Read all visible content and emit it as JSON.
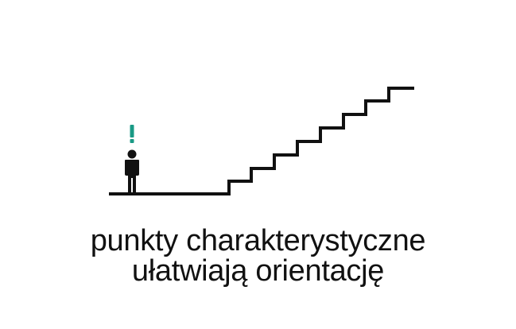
{
  "illustration": {
    "figure": "person-standing-icon",
    "marker": "exclamation-mark-icon",
    "marker_color": "#1a9a85",
    "line_color": "#111111"
  },
  "caption": {
    "line1": "punkty charakterystyczne",
    "line2": "ułatwiają orientację"
  }
}
